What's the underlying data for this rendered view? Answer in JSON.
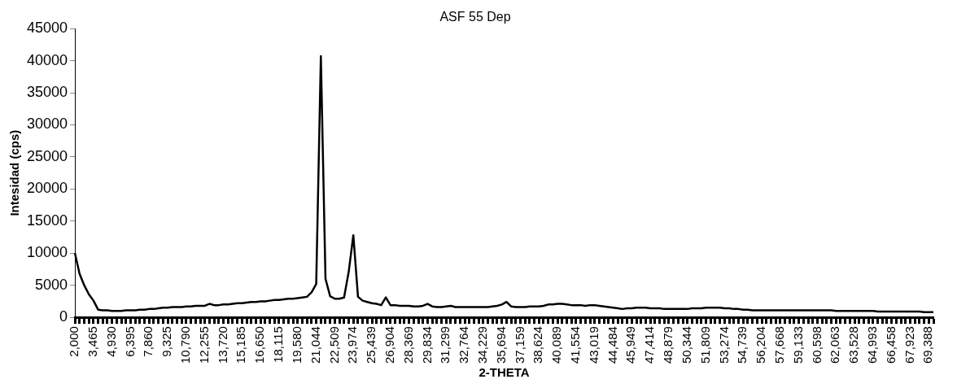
{
  "chart_data": {
    "type": "line",
    "title": "ASF 55 Dep",
    "xlabel": "2-THETA",
    "ylabel": "Intesidad (cps)",
    "categories": [
      "2,000",
      null,
      null,
      null,
      "3,465",
      null,
      null,
      null,
      "4,930",
      null,
      null,
      null,
      "6,395",
      null,
      null,
      null,
      "7,860",
      null,
      null,
      null,
      "9,325",
      null,
      null,
      null,
      "10,790",
      null,
      null,
      null,
      "12,255",
      null,
      null,
      null,
      "13,720",
      null,
      null,
      null,
      "15,185",
      null,
      null,
      null,
      "16,650",
      null,
      null,
      null,
      "18,115",
      null,
      null,
      null,
      "19,580",
      null,
      null,
      null,
      "21,044",
      null,
      null,
      null,
      "22,509",
      null,
      null,
      null,
      "23,974",
      null,
      null,
      null,
      "25,439",
      null,
      null,
      null,
      "26,904",
      null,
      null,
      null,
      "28,369",
      null,
      null,
      null,
      "29,834",
      null,
      null,
      null,
      "31,299",
      null,
      null,
      null,
      "32,764",
      null,
      null,
      null,
      "34,229",
      null,
      null,
      null,
      "35,694",
      null,
      null,
      null,
      "37,159",
      null,
      null,
      null,
      "38,624",
      null,
      null,
      null,
      "40,089",
      null,
      null,
      null,
      "41,554",
      null,
      null,
      null,
      "43,019",
      null,
      null,
      null,
      "44,484",
      null,
      null,
      null,
      "45,949",
      null,
      null,
      null,
      "47,414",
      null,
      null,
      null,
      "48,879",
      null,
      null,
      null,
      "50,344",
      null,
      null,
      null,
      "51,809",
      null,
      null,
      null,
      "53,274",
      null,
      null,
      null,
      "54,739",
      null,
      null,
      null,
      "56,204",
      null,
      null,
      null,
      "57,668",
      null,
      null,
      null,
      "59,133",
      null,
      null,
      null,
      "60,598",
      null,
      null,
      null,
      "62,063",
      null,
      null,
      null,
      "63,528",
      null,
      null,
      null,
      "64,993",
      null,
      null,
      null,
      "66,458",
      null,
      null,
      null,
      "67,923",
      null,
      null,
      null,
      "69,388",
      null
    ],
    "series": [
      {
        "color": "#000000",
        "values": [
          10000,
          6800,
          5000,
          3600,
          2600,
          1200,
          1100,
          1100,
          1000,
          1000,
          1000,
          1100,
          1100,
          1100,
          1200,
          1200,
          1300,
          1300,
          1400,
          1500,
          1500,
          1600,
          1600,
          1600,
          1700,
          1700,
          1800,
          1800,
          1800,
          2100,
          1900,
          1900,
          2000,
          2000,
          2100,
          2200,
          2200,
          2300,
          2400,
          2400,
          2500,
          2500,
          2600,
          2700,
          2700,
          2800,
          2900,
          2900,
          3000,
          3100,
          3200,
          3900,
          5200,
          40700,
          6000,
          3300,
          2900,
          2900,
          3100,
          7100,
          12800,
          3200,
          2600,
          2400,
          2200,
          2100,
          1900,
          3100,
          1900,
          1900,
          1800,
          1800,
          1800,
          1700,
          1700,
          1800,
          2100,
          1700,
          1600,
          1600,
          1700,
          1800,
          1600,
          1600,
          1600,
          1600,
          1600,
          1600,
          1600,
          1600,
          1700,
          1800,
          2000,
          2400,
          1700,
          1600,
          1600,
          1600,
          1700,
          1700,
          1700,
          1800,
          2000,
          2000,
          2100,
          2100,
          2000,
          1900,
          1900,
          1900,
          1800,
          1900,
          1900,
          1800,
          1700,
          1600,
          1500,
          1400,
          1300,
          1400,
          1400,
          1500,
          1500,
          1500,
          1400,
          1400,
          1400,
          1300,
          1300,
          1300,
          1300,
          1300,
          1300,
          1400,
          1400,
          1400,
          1500,
          1500,
          1500,
          1500,
          1400,
          1400,
          1300,
          1300,
          1200,
          1200,
          1100,
          1100,
          1100,
          1100,
          1100,
          1100,
          1100,
          1100,
          1100,
          1100,
          1100,
          1100,
          1100,
          1100,
          1100,
          1100,
          1100,
          1100,
          1000,
          1000,
          1000,
          1000,
          1000,
          1000,
          1000,
          1000,
          1000,
          900,
          900,
          900,
          900,
          900,
          900,
          900,
          900,
          900,
          900,
          800,
          800,
          800
        ]
      }
    ],
    "ylim": [
      0,
      45000
    ],
    "yticks": [
      0,
      5000,
      10000,
      15000,
      20000,
      25000,
      30000,
      35000,
      40000,
      45000
    ],
    "grid": false,
    "legend": false,
    "marker": "none",
    "line_style": "solid"
  }
}
